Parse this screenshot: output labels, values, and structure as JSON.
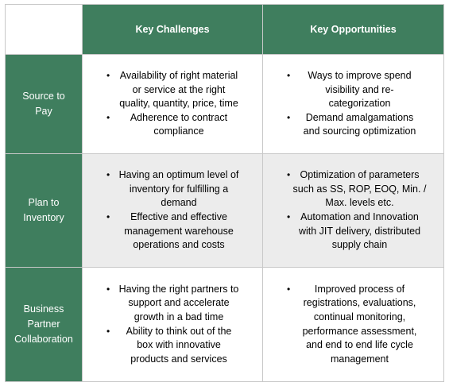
{
  "header": {
    "col1": "Key Challenges",
    "col2": "Key Opportunities"
  },
  "rows": [
    {
      "label_lines": [
        "Source to",
        "Pay"
      ],
      "challenges": [
        [
          "Availability of right material",
          "or service at the right",
          "quality, quantity, price, time"
        ],
        [
          "Adherence to contract",
          "compliance"
        ]
      ],
      "opportunities": [
        [
          "Ways to improve spend",
          "visibility and re-",
          "categorization"
        ],
        [
          "Demand amalgamations",
          "and sourcing optimization"
        ]
      ]
    },
    {
      "label_lines": [
        "Plan to",
        "Inventory"
      ],
      "challenges": [
        [
          "Having an optimum level of",
          "inventory for fulfilling a",
          "demand"
        ],
        [
          "Effective and effective",
          "management warehouse",
          "operations and costs"
        ]
      ],
      "opportunities": [
        [
          "Optimization of parameters",
          "such as SS, ROP, EOQ, Min. /",
          "Max. levels etc."
        ],
        [
          "Automation and Innovation",
          "with JIT delivery, distributed",
          "supply chain"
        ]
      ]
    },
    {
      "label_lines": [
        "Business",
        "Partner",
        "Collaboration"
      ],
      "challenges": [
        [
          "Having the right partners to",
          "support and accelerate",
          "growth in a bad time"
        ],
        [
          "Ability to think out of the",
          "box with innovative",
          "products and services"
        ]
      ],
      "opportunities": [
        [
          "Improved process of",
          "registrations, evaluations,",
          "continual monitoring,",
          "performance assessment,",
          "and end to end life cycle",
          "management"
        ]
      ]
    }
  ]
}
